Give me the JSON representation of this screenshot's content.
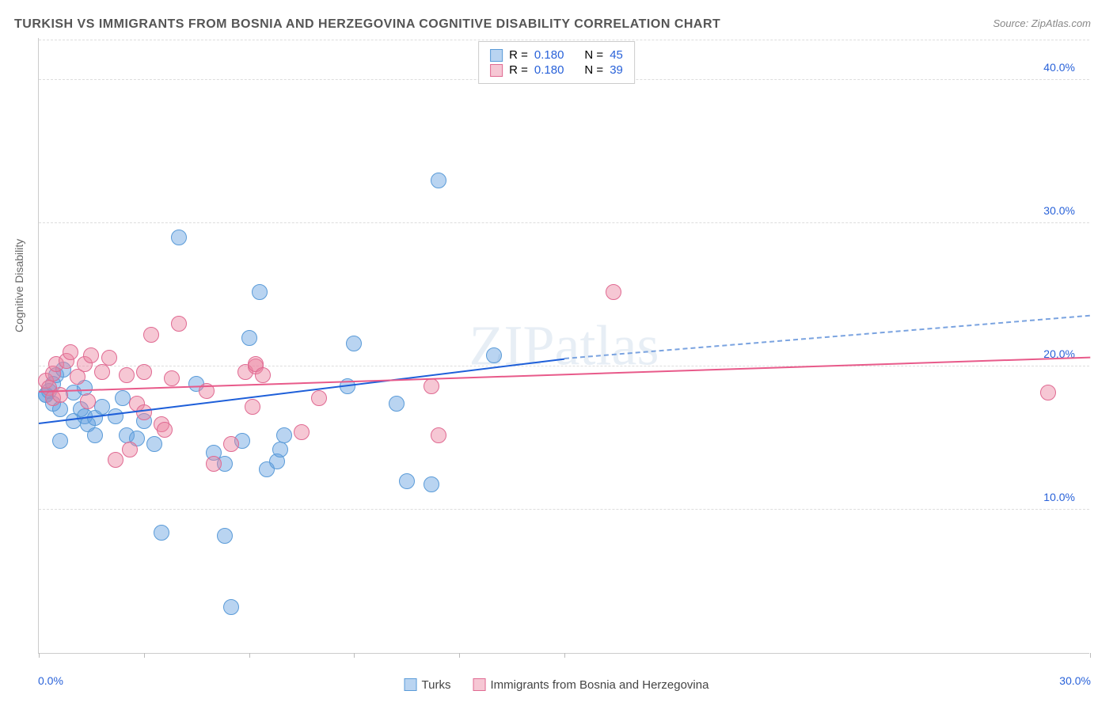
{
  "title": "TURKISH VS IMMIGRANTS FROM BOSNIA AND HERZEGOVINA COGNITIVE DISABILITY CORRELATION CHART",
  "source": "Source: ZipAtlas.com",
  "ylabel": "Cognitive Disability",
  "watermark": "ZIPatlas",
  "chart": {
    "type": "scatter",
    "xlim": [
      0,
      30
    ],
    "ylim": [
      0,
      43
    ],
    "grid_dash": true,
    "grid_color": "#dddddd",
    "background_color": "#ffffff",
    "ytick_values": [
      10,
      20,
      30,
      40
    ],
    "ytick_labels": [
      "10.0%",
      "20.0%",
      "30.0%",
      "40.0%"
    ],
    "xtick_values": [
      0,
      3,
      6,
      9,
      12,
      15,
      30
    ],
    "xtick_labels": {
      "0": "0.0%",
      "30": "30.0%"
    },
    "marker_radius": 10,
    "marker_fill_opacity": 0.45,
    "series": [
      {
        "name": "Turks",
        "color_fill": "#64a0e1",
        "color_border": "#5a9bd8",
        "R": "0.180",
        "N": "45",
        "trend": {
          "x1": 0,
          "y1": 16.0,
          "x2": 15.0,
          "y2": 20.5,
          "color": "#1e5fd9",
          "width": 2,
          "dashed_extension": {
            "x1": 15.0,
            "y1": 20.5,
            "x2": 30.0,
            "y2": 23.5
          }
        },
        "points": [
          [
            0.2,
            18.0
          ],
          [
            0.2,
            18.0
          ],
          [
            0.3,
            18.3
          ],
          [
            0.4,
            17.4
          ],
          [
            0.4,
            18.8
          ],
          [
            0.5,
            19.4
          ],
          [
            0.6,
            17.0
          ],
          [
            0.6,
            14.8
          ],
          [
            0.7,
            19.8
          ],
          [
            1.0,
            16.2
          ],
          [
            1.0,
            18.2
          ],
          [
            1.2,
            17.0
          ],
          [
            1.3,
            16.5
          ],
          [
            1.3,
            18.5
          ],
          [
            1.4,
            16.0
          ],
          [
            1.6,
            15.2
          ],
          [
            1.6,
            16.4
          ],
          [
            1.8,
            17.2
          ],
          [
            2.2,
            16.5
          ],
          [
            2.4,
            17.8
          ],
          [
            2.5,
            15.2
          ],
          [
            2.8,
            15.0
          ],
          [
            3.0,
            16.2
          ],
          [
            3.3,
            14.6
          ],
          [
            3.5,
            8.4
          ],
          [
            4.0,
            29.0
          ],
          [
            4.5,
            18.8
          ],
          [
            5.0,
            14.0
          ],
          [
            5.3,
            13.2
          ],
          [
            5.8,
            14.8
          ],
          [
            5.3,
            8.2
          ],
          [
            5.5,
            3.2
          ],
          [
            6.0,
            22.0
          ],
          [
            6.3,
            25.2
          ],
          [
            6.5,
            12.8
          ],
          [
            6.8,
            13.4
          ],
          [
            6.9,
            14.2
          ],
          [
            7.0,
            15.2
          ],
          [
            8.8,
            18.6
          ],
          [
            9.0,
            21.6
          ],
          [
            10.2,
            17.4
          ],
          [
            10.5,
            12.0
          ],
          [
            11.2,
            11.8
          ],
          [
            11.4,
            33.0
          ],
          [
            13.0,
            20.8
          ]
        ]
      },
      {
        "name": "Immigrants from Bosnia and Herzegovina",
        "color_fill": "#eb82a0",
        "color_border": "#e06a92",
        "R": "0.180",
        "N": "39",
        "trend": {
          "x1": 0,
          "y1": 18.2,
          "x2": 30.0,
          "y2": 20.6,
          "color": "#e85a8a",
          "width": 2
        },
        "points": [
          [
            0.2,
            19.0
          ],
          [
            0.3,
            18.5
          ],
          [
            0.4,
            19.5
          ],
          [
            0.4,
            17.8
          ],
          [
            0.5,
            20.2
          ],
          [
            0.6,
            18.0
          ],
          [
            0.8,
            20.4
          ],
          [
            0.9,
            21.0
          ],
          [
            1.1,
            19.3
          ],
          [
            1.3,
            20.2
          ],
          [
            1.4,
            17.6
          ],
          [
            1.5,
            20.8
          ],
          [
            1.8,
            19.6
          ],
          [
            2.0,
            20.6
          ],
          [
            2.2,
            13.5
          ],
          [
            2.5,
            19.4
          ],
          [
            2.6,
            14.2
          ],
          [
            2.8,
            17.4
          ],
          [
            3.0,
            16.8
          ],
          [
            3.0,
            19.6
          ],
          [
            3.2,
            22.2
          ],
          [
            3.5,
            16.0
          ],
          [
            3.6,
            15.6
          ],
          [
            3.8,
            19.2
          ],
          [
            4.0,
            23.0
          ],
          [
            4.8,
            18.3
          ],
          [
            5.0,
            13.2
          ],
          [
            5.5,
            14.6
          ],
          [
            5.9,
            19.6
          ],
          [
            6.1,
            17.2
          ],
          [
            6.2,
            20.0
          ],
          [
            6.2,
            20.2
          ],
          [
            6.4,
            19.4
          ],
          [
            7.5,
            15.4
          ],
          [
            8.0,
            17.8
          ],
          [
            11.2,
            18.6
          ],
          [
            11.4,
            15.2
          ],
          [
            16.4,
            25.2
          ],
          [
            28.8,
            18.2
          ]
        ]
      }
    ]
  },
  "legend_bottom": {
    "series1_label": "Turks",
    "series2_label": "Immigrants from Bosnia and Herzegovina"
  }
}
